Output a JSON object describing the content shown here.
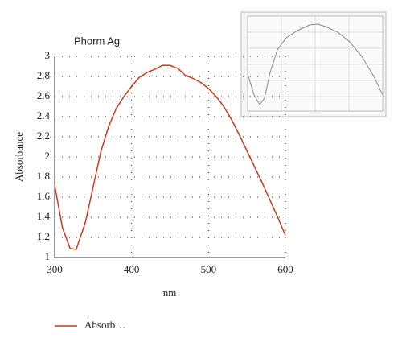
{
  "chart_data": {
    "type": "line",
    "title": "Phorm Ag",
    "x_label": "nm",
    "y_label": "Absorbance",
    "x": [
      300,
      310,
      320,
      328,
      340,
      350,
      360,
      370,
      380,
      390,
      400,
      410,
      420,
      430,
      440,
      450,
      460,
      470,
      480,
      490,
      500,
      510,
      520,
      530,
      540,
      550,
      560,
      570,
      580,
      590,
      600
    ],
    "series": [
      {
        "name": "Absorb…",
        "color": "#cc3a1a",
        "values": [
          1.72,
          1.3,
          1.09,
          1.08,
          1.35,
          1.7,
          2.05,
          2.3,
          2.48,
          2.6,
          2.7,
          2.79,
          2.84,
          2.87,
          2.91,
          2.91,
          2.88,
          2.81,
          2.78,
          2.74,
          2.68,
          2.6,
          2.5,
          2.37,
          2.22,
          2.06,
          1.9,
          1.74,
          1.57,
          1.4,
          1.22
        ]
      }
    ],
    "xlim": [
      300,
      600
    ],
    "xticks": [
      300,
      400,
      500,
      600
    ],
    "ylim": [
      1,
      3
    ],
    "yticks": [
      1,
      1.2,
      1.4,
      1.6,
      1.8,
      2,
      2.2,
      2.4,
      2.6,
      2.8,
      3
    ],
    "grid": true,
    "legend": "bottom-left"
  }
}
